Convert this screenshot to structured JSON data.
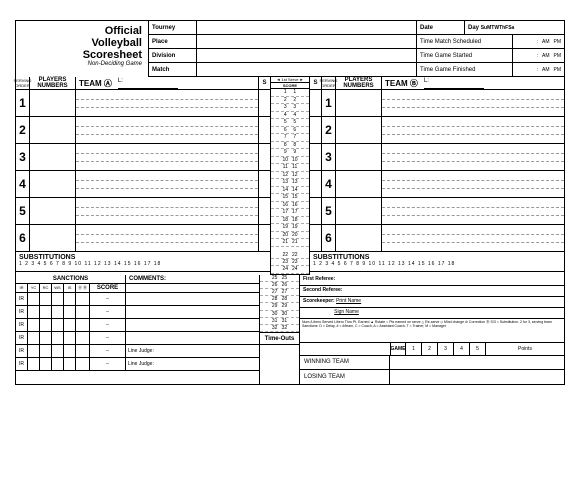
{
  "title": {
    "line1": "Official",
    "line2": "Volleyball",
    "line3": "Scoresheet",
    "sub": "Non-Deciding Game"
  },
  "hdr": {
    "tourney": "Tourney",
    "date": "Date",
    "day": "Day",
    "place": "Place",
    "tms": "Time Match Scheduled",
    "am": "AM",
    "pm": "PM",
    "division": "Division",
    "tgs": "Time Game Started",
    "match": "Match",
    "tgf": "Time Game Finished",
    "days": [
      "Su",
      "M",
      "T",
      "W",
      "Th",
      "F",
      "Sa"
    ]
  },
  "team": {
    "a": "TEAM  Ⓐ",
    "b": "TEAM  Ⓑ",
    "L": "L:"
  },
  "centre": {
    "fs": "◄ 1st Serve ►",
    "score": "SCORE"
  },
  "players": {
    "so": "SERVING ORDER",
    "pn": "PLAYERS NUMBERS",
    "s": "S",
    "rows": [
      1,
      2,
      3,
      4,
      5,
      6
    ]
  },
  "subs": {
    "t": "SUBSTITUTIONS",
    "nums": "1  2  3  4  5  6  7  8  9  10  11  12  13  14  15  16  17  18"
  },
  "sanc": {
    "t": "SANCTIONS",
    "com": "COMMENTS:",
    "score": "SCORE",
    "cols": [
      "IR",
      "YC",
      "RC",
      "WS",
      "IS",
      "Ⓐ Ⓑ"
    ],
    "ir": "IR",
    "dash": "–",
    "lj": "Line Judge:"
  },
  "to": "Time-Outs",
  "refs": {
    "r1": "First Referee:",
    "r2": "Second Referee:",
    "sk": "Scorekeeper:",
    "pn": "Print Name",
    "sn": "Sign Name"
  },
  "legend": "Num./Libero Served  Libero Thru  Pt. Earned ▲  Rotate ○  Pts earned on serve △  Re-serve ◇  Mind change ⊘ Correction Ⓡ\nS/3 = Substitution, 2 for 3, serving team    Sanctions: D = Delay, # = #/team, C = Coach, A = Assistant Coach, T = Trainer, M = Manager",
  "result": {
    "win": "WINNING TEAM",
    "lose": "LOSING TEAM",
    "game": "GAME",
    "g": [
      "1",
      "2",
      "3",
      "4",
      "5"
    ],
    "pts": "Points"
  },
  "score_nums": [
    1,
    2,
    3,
    4,
    5,
    6,
    7,
    8,
    9,
    10,
    11,
    12,
    13,
    14,
    15,
    16,
    17,
    18,
    19,
    20,
    21,
    22,
    23,
    24,
    25,
    26,
    27,
    28,
    29,
    30,
    31,
    32
  ]
}
